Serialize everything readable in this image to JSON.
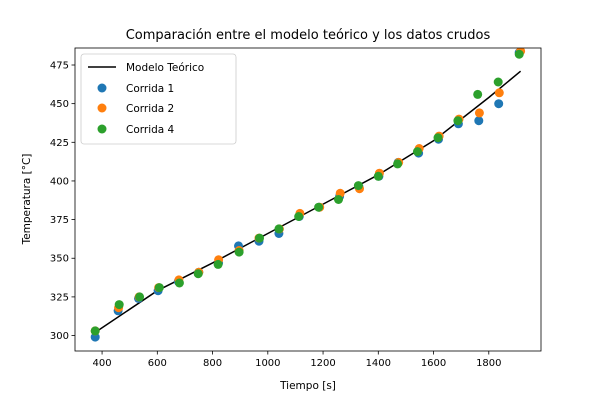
{
  "chart_data": {
    "type": "scatter",
    "title": "Comparación entre el modelo teórico y los datos crudos",
    "xlabel": "Tiempo [s]",
    "ylabel": "Temperatura [°C]",
    "xlim": [
      302,
      1989
    ],
    "ylim": [
      290,
      486
    ],
    "x_ticks": [
      400,
      600,
      800,
      1000,
      1200,
      1400,
      1600,
      1800
    ],
    "y_ticks": [
      300,
      325,
      350,
      375,
      400,
      425,
      450,
      475
    ],
    "grid": false,
    "legend_position": "top-left",
    "line": {
      "name": "Modelo Teórico",
      "color": "#000000",
      "x": [
        375,
        600,
        800,
        1000,
        1200,
        1400,
        1600,
        1800,
        1915
      ],
      "y": [
        302,
        329,
        347,
        366,
        385,
        404,
        426,
        454,
        471
      ]
    },
    "series": [
      {
        "name": "Corrida 1",
        "color": "#1f77b4",
        "x": [
          375,
          458,
          532,
          603,
          676,
          750,
          822,
          894,
          968,
          1040,
          1114,
          1186,
          1260,
          1330,
          1402,
          1472,
          1546,
          1618,
          1690,
          1764,
          1836,
          1910
        ],
        "y": [
          299,
          316,
          324,
          329,
          335,
          341,
          347,
          358,
          361,
          366,
          377,
          383,
          390,
          396,
          403,
          412,
          418,
          427,
          437,
          439,
          450,
          483
        ]
      },
      {
        "name": "Corrida 2",
        "color": "#ff7f0e",
        "x": [
          375,
          460,
          534,
          605,
          678,
          750,
          822,
          896,
          968,
          1042,
          1116,
          1188,
          1262,
          1332,
          1404,
          1474,
          1548,
          1620,
          1692,
          1766,
          1838,
          1915
        ],
        "y": [
          303,
          318,
          325,
          331,
          336,
          341,
          349,
          355,
          363,
          369,
          379,
          383,
          392,
          395,
          405,
          412,
          421,
          429,
          440,
          444,
          457,
          484
        ]
      },
      {
        "name": "Corrida 4",
        "color": "#2ca02c",
        "x": [
          375,
          462,
          536,
          607,
          680,
          748,
          820,
          896,
          970,
          1040,
          1112,
          1184,
          1256,
          1328,
          1400,
          1470,
          1542,
          1616,
          1688,
          1760,
          1834,
          1910
        ],
        "y": [
          303,
          320,
          325,
          331,
          334,
          340,
          346,
          354,
          363,
          369,
          377,
          383,
          388,
          397,
          403,
          411,
          419,
          428,
          439,
          456,
          464,
          482
        ]
      }
    ]
  }
}
